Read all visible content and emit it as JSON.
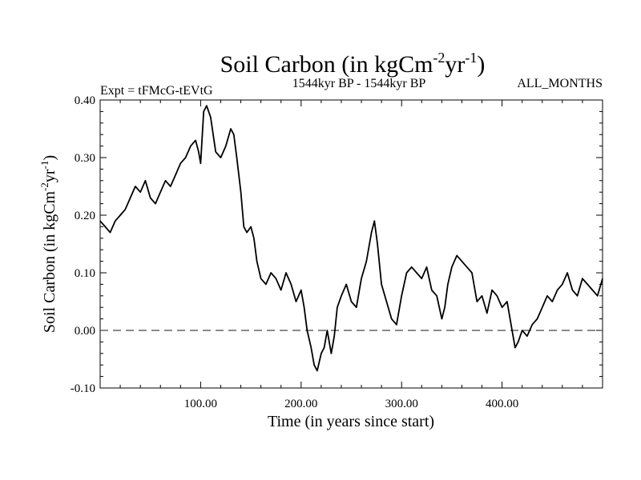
{
  "chart_data": {
    "type": "line",
    "title_main": "Soil Carbon (in kgCm",
    "title_sup1": "-2",
    "title_mid": "yr",
    "title_sup2": "-1",
    "title_end": ")",
    "left_annotation": "Expt = tFMcG-tEVtG",
    "center_annotation": "1544kyr BP - 1544kyr BP",
    "right_annotation": "ALL_MONTHS",
    "xlabel": "Time (in years since start)",
    "ylabel_main": "Soil Carbon (in kgCm",
    "ylabel_sup1": "-2",
    "ylabel_mid": "yr",
    "ylabel_sup2": "-1",
    "ylabel_end": ")",
    "xlim": [
      0,
      500
    ],
    "ylim": [
      -0.1,
      0.4
    ],
    "xticks": [
      100,
      200,
      300,
      400
    ],
    "xtick_labels": [
      "100.00",
      "200.00",
      "300.00",
      "400.00"
    ],
    "yticks": [
      -0.1,
      0.0,
      0.1,
      0.2,
      0.3,
      0.4
    ],
    "ytick_labels": [
      "-0.10",
      "0.00",
      "0.10",
      "0.20",
      "0.30",
      "0.40"
    ],
    "reference_line": 0.0,
    "series": [
      {
        "name": "Soil Carbon",
        "x": [
          0,
          5,
          10,
          15,
          20,
          25,
          30,
          35,
          40,
          45,
          50,
          55,
          60,
          65,
          70,
          75,
          80,
          85,
          90,
          95,
          98,
          100,
          103,
          106,
          110,
          115,
          120,
          125,
          130,
          133,
          136,
          140,
          143,
          146,
          150,
          153,
          156,
          160,
          165,
          170,
          175,
          180,
          185,
          190,
          195,
          200,
          203,
          206,
          210,
          213,
          216,
          220,
          223,
          226,
          230,
          233,
          236,
          240,
          245,
          250,
          255,
          260,
          265,
          270,
          273,
          276,
          280,
          285,
          290,
          295,
          300,
          305,
          310,
          315,
          320,
          325,
          330,
          335,
          340,
          343,
          346,
          350,
          355,
          360,
          365,
          370,
          375,
          380,
          385,
          390,
          395,
          400,
          405,
          410,
          413,
          416,
          420,
          425,
          430,
          435,
          440,
          445,
          450,
          455,
          460,
          465,
          470,
          475,
          480,
          485,
          490,
          495,
          500
        ],
        "y": [
          0.19,
          0.18,
          0.17,
          0.19,
          0.2,
          0.21,
          0.23,
          0.25,
          0.24,
          0.26,
          0.23,
          0.22,
          0.24,
          0.26,
          0.25,
          0.27,
          0.29,
          0.3,
          0.32,
          0.33,
          0.31,
          0.29,
          0.38,
          0.39,
          0.37,
          0.31,
          0.3,
          0.32,
          0.35,
          0.34,
          0.3,
          0.24,
          0.18,
          0.17,
          0.18,
          0.16,
          0.12,
          0.09,
          0.08,
          0.1,
          0.09,
          0.07,
          0.1,
          0.08,
          0.05,
          0.07,
          0.04,
          0.0,
          -0.03,
          -0.06,
          -0.07,
          -0.04,
          -0.03,
          0.0,
          -0.04,
          -0.01,
          0.04,
          0.06,
          0.08,
          0.05,
          0.04,
          0.09,
          0.12,
          0.17,
          0.19,
          0.15,
          0.08,
          0.05,
          0.02,
          0.01,
          0.06,
          0.1,
          0.11,
          0.1,
          0.09,
          0.11,
          0.07,
          0.06,
          0.02,
          0.04,
          0.08,
          0.11,
          0.13,
          0.12,
          0.11,
          0.1,
          0.05,
          0.06,
          0.03,
          0.07,
          0.06,
          0.04,
          0.05,
          0.0,
          -0.03,
          -0.02,
          0.0,
          -0.01,
          0.01,
          0.02,
          0.04,
          0.06,
          0.05,
          0.07,
          0.08,
          0.1,
          0.07,
          0.06,
          0.09,
          0.08,
          0.07,
          0.06,
          0.09
        ]
      }
    ]
  }
}
